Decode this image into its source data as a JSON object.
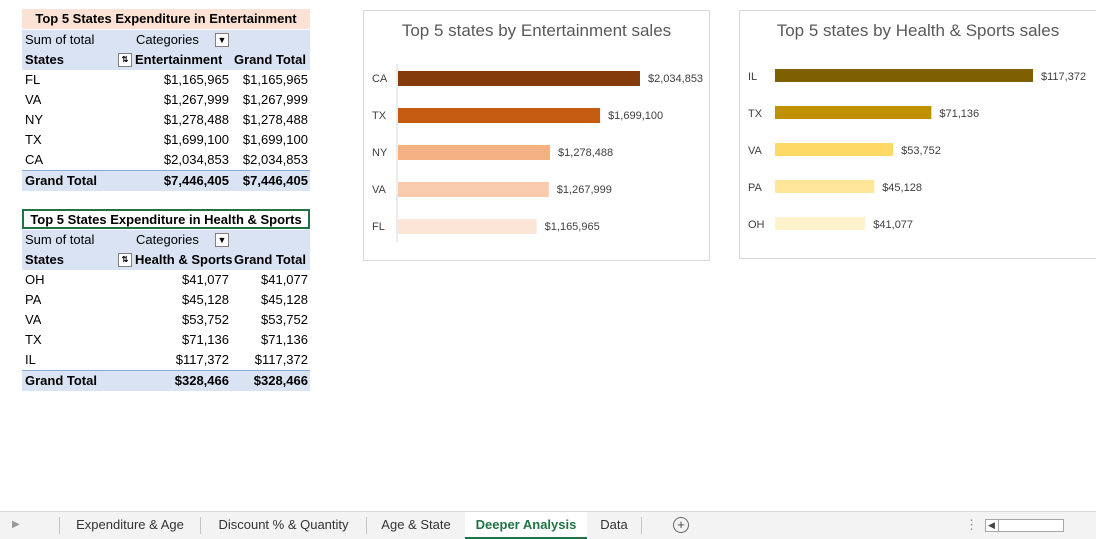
{
  "pivot1": {
    "title": "Top 5 States Expenditure in Entertainment",
    "sum_label": "Sum of total",
    "categories_label": "Categories",
    "rows_label": "States",
    "col1_label": "Entertainment",
    "col2_label": "Grand Total",
    "rows": [
      {
        "state": "FL",
        "v1": "$1,165,965",
        "v2": "$1,165,965"
      },
      {
        "state": "VA",
        "v1": "$1,267,999",
        "v2": "$1,267,999"
      },
      {
        "state": "NY",
        "v1": "$1,278,488",
        "v2": "$1,278,488"
      },
      {
        "state": "TX",
        "v1": "$1,699,100",
        "v2": "$1,699,100"
      },
      {
        "state": "CA",
        "v1": "$2,034,853",
        "v2": "$2,034,853"
      }
    ],
    "total_label": "Grand Total",
    "total_v1": "$7,446,405",
    "total_v2": "$7,446,405"
  },
  "pivot2": {
    "title": "Top 5 States Expenditure in Health & Sports",
    "sum_label": "Sum of total",
    "categories_label": "Categories",
    "rows_label": "States",
    "col1_label": "Health & Sports",
    "col2_label": "Grand Total",
    "rows": [
      {
        "state": "OH",
        "v1": "$41,077",
        "v2": "$41,077"
      },
      {
        "state": "PA",
        "v1": "$45,128",
        "v2": "$45,128"
      },
      {
        "state": "VA",
        "v1": "$53,752",
        "v2": "$53,752"
      },
      {
        "state": "TX",
        "v1": "$71,136",
        "v2": "$71,136"
      },
      {
        "state": "IL",
        "v1": "$117,372",
        "v2": "$117,372"
      }
    ],
    "total_label": "Grand Total",
    "total_v1": "$328,466",
    "total_v2": "$328,466"
  },
  "chart_data": [
    {
      "type": "bar",
      "orientation": "horizontal",
      "title": "Top 5 states by Entertainment sales",
      "categories": [
        "CA",
        "TX",
        "NY",
        "VA",
        "FL"
      ],
      "values": [
        2034853,
        1699100,
        1278488,
        1267999,
        1165965
      ],
      "labels": [
        "$2,034,853",
        "$1,699,100",
        "$1,278,488",
        "$1,267,999",
        "$1,165,965"
      ],
      "colors": [
        "#843c0c",
        "#c55a11",
        "#f4b183",
        "#f8cbad",
        "#fbe5d6"
      ],
      "grid": false
    },
    {
      "type": "bar",
      "orientation": "horizontal",
      "title": "Top 5 states by Health & Sports sales",
      "categories": [
        "IL",
        "TX",
        "VA",
        "PA",
        "OH"
      ],
      "values": [
        117372,
        71136,
        53752,
        45128,
        41077
      ],
      "labels": [
        "$117,372",
        "$71,136",
        "$53,752",
        "$45,128",
        "$41,077"
      ],
      "colors": [
        "#7f6000",
        "#bf9000",
        "#ffd966",
        "#ffe699",
        "#fff2cc"
      ],
      "grid": false
    }
  ],
  "tabs": {
    "items": [
      "Expenditure & Age",
      "Discount % & Quantity",
      "Age & State",
      "Deeper Analysis",
      "Data"
    ],
    "active": "Deeper Analysis"
  },
  "colors": {
    "header_fill": "#dae3f3",
    "title1_fill": "#fbe2d5",
    "accent": "#217346"
  }
}
